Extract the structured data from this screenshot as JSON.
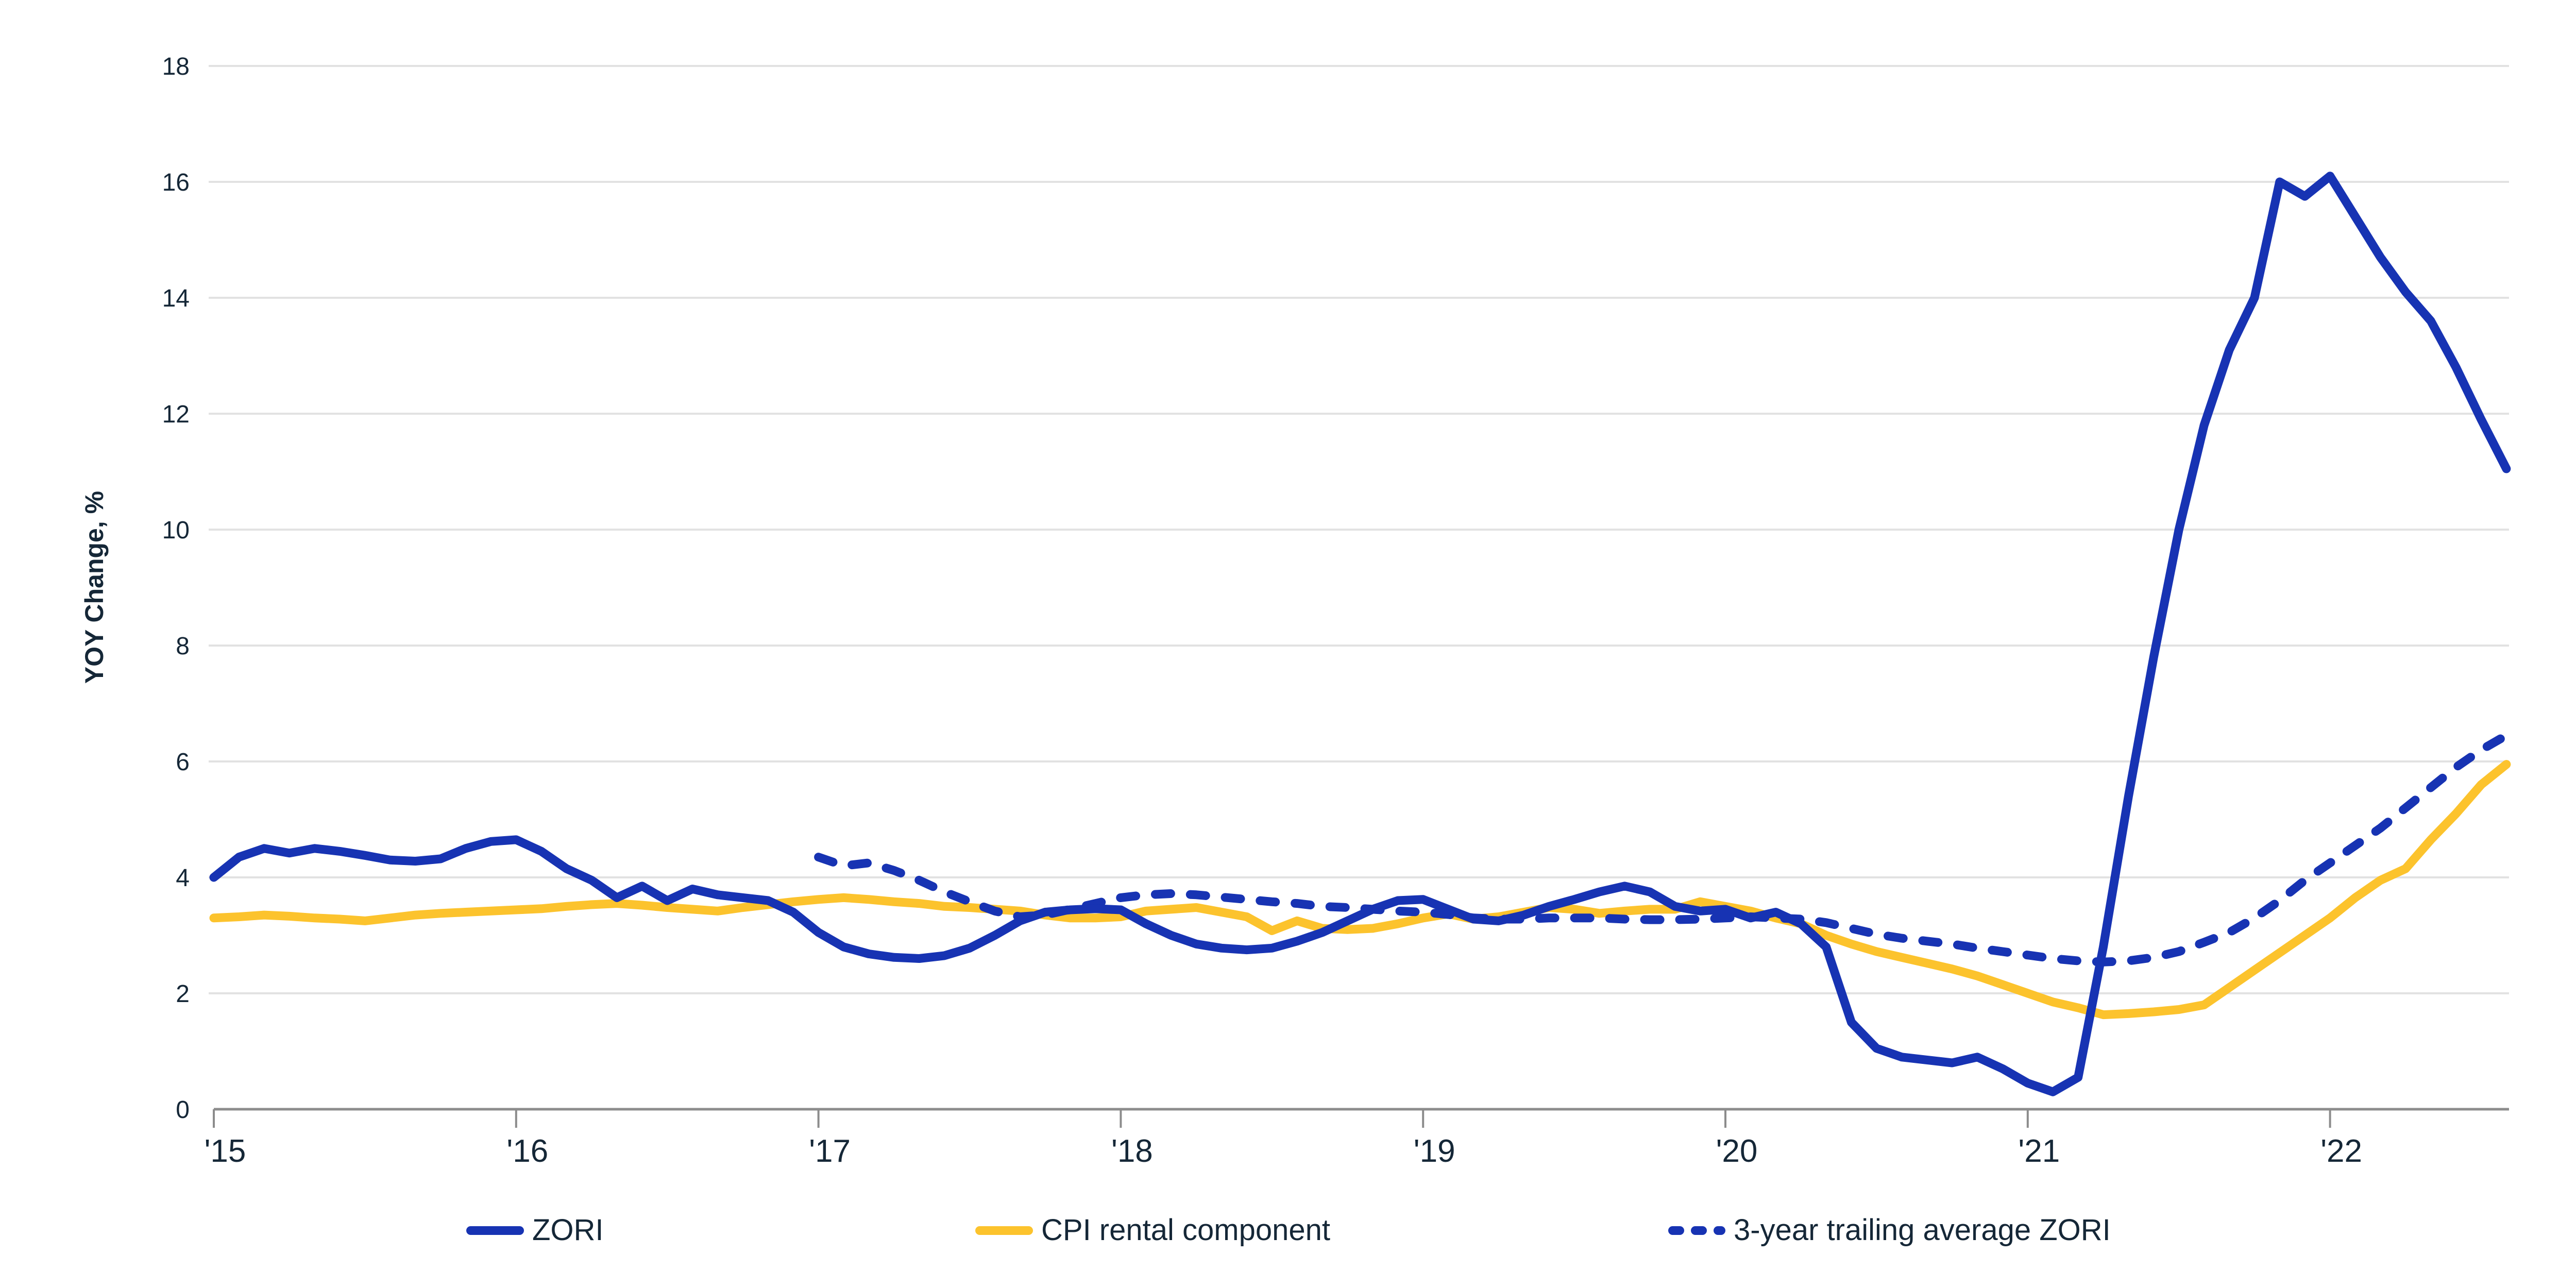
{
  "colors": {
    "zori_blue": "#1733b3",
    "cpi_yellow": "#fcc32d",
    "text_navy": "#152737",
    "gridline_gray": "#e2e2e2",
    "axis_gray": "#8c8c8c",
    "background": "#ffffff"
  },
  "chart_data": {
    "type": "line",
    "ylabel": "YOY Change, %",
    "ylim": [
      0,
      18
    ],
    "yticks": [
      0,
      2,
      4,
      6,
      8,
      10,
      12,
      14,
      16,
      18
    ],
    "xtick_labels": [
      "'15",
      "'16",
      "'17",
      "'18",
      "'19",
      "'20",
      "'21",
      "'22"
    ],
    "grid": "horizontal",
    "legend_position": "bottom",
    "months": [
      "2015-01",
      "2015-02",
      "2015-03",
      "2015-04",
      "2015-05",
      "2015-06",
      "2015-07",
      "2015-08",
      "2015-09",
      "2015-10",
      "2015-11",
      "2015-12",
      "2016-01",
      "2016-02",
      "2016-03",
      "2016-04",
      "2016-05",
      "2016-06",
      "2016-07",
      "2016-08",
      "2016-09",
      "2016-10",
      "2016-11",
      "2016-12",
      "2017-01",
      "2017-02",
      "2017-03",
      "2017-04",
      "2017-05",
      "2017-06",
      "2017-07",
      "2017-08",
      "2017-09",
      "2017-10",
      "2017-11",
      "2017-12",
      "2018-01",
      "2018-02",
      "2018-03",
      "2018-04",
      "2018-05",
      "2018-06",
      "2018-07",
      "2018-08",
      "2018-09",
      "2018-10",
      "2018-11",
      "2018-12",
      "2019-01",
      "2019-02",
      "2019-03",
      "2019-04",
      "2019-05",
      "2019-06",
      "2019-07",
      "2019-08",
      "2019-09",
      "2019-10",
      "2019-11",
      "2019-12",
      "2020-01",
      "2020-02",
      "2020-03",
      "2020-04",
      "2020-05",
      "2020-06",
      "2020-07",
      "2020-08",
      "2020-09",
      "2020-10",
      "2020-11",
      "2020-12",
      "2021-01",
      "2021-02",
      "2021-03",
      "2021-04",
      "2021-05",
      "2021-06",
      "2021-07",
      "2021-08",
      "2021-09",
      "2021-10",
      "2021-11",
      "2021-12",
      "2022-01",
      "2022-02",
      "2022-03",
      "2022-04",
      "2022-05",
      "2022-06",
      "2022-07",
      "2022-08"
    ],
    "series": [
      {
        "name": "ZORI",
        "color": "#1733b3",
        "style": "solid",
        "start_index": 0,
        "values": [
          4.0,
          4.35,
          4.5,
          4.42,
          4.5,
          4.45,
          4.38,
          4.3,
          4.28,
          4.32,
          4.5,
          4.62,
          4.65,
          4.45,
          4.15,
          3.95,
          3.65,
          3.85,
          3.6,
          3.8,
          3.7,
          3.65,
          3.6,
          3.4,
          3.05,
          2.8,
          2.68,
          2.62,
          2.6,
          2.65,
          2.78,
          3.0,
          3.25,
          3.4,
          3.44,
          3.46,
          3.44,
          3.2,
          3.0,
          2.85,
          2.78,
          2.75,
          2.78,
          2.9,
          3.05,
          3.25,
          3.45,
          3.6,
          3.62,
          3.45,
          3.28,
          3.25,
          3.35,
          3.5,
          3.62,
          3.75,
          3.85,
          3.75,
          3.5,
          3.42,
          3.45,
          3.3,
          3.4,
          3.2,
          2.8,
          1.5,
          1.05,
          0.9,
          0.85,
          0.8,
          0.9,
          0.7,
          0.45,
          0.3,
          0.55,
          2.8,
          5.4,
          7.8,
          10.0,
          11.8,
          13.1,
          14.0,
          16.0,
          15.75,
          16.1,
          15.4,
          14.7,
          14.1,
          13.6,
          12.8,
          11.9,
          11.05
        ]
      },
      {
        "name": "CPI rental component",
        "color": "#fcc32d",
        "style": "solid",
        "start_index": 0,
        "values": [
          3.3,
          3.32,
          3.35,
          3.33,
          3.3,
          3.28,
          3.25,
          3.3,
          3.35,
          3.38,
          3.4,
          3.42,
          3.44,
          3.46,
          3.5,
          3.53,
          3.55,
          3.52,
          3.48,
          3.45,
          3.42,
          3.48,
          3.53,
          3.58,
          3.62,
          3.65,
          3.62,
          3.58,
          3.55,
          3.5,
          3.48,
          3.45,
          3.42,
          3.35,
          3.3,
          3.3,
          3.32,
          3.42,
          3.45,
          3.48,
          3.4,
          3.32,
          3.08,
          3.25,
          3.12,
          3.1,
          3.12,
          3.2,
          3.3,
          3.37,
          3.28,
          3.32,
          3.4,
          3.48,
          3.45,
          3.38,
          3.42,
          3.45,
          3.45,
          3.58,
          3.5,
          3.42,
          3.3,
          3.2,
          3.0,
          2.85,
          2.72,
          2.62,
          2.52,
          2.42,
          2.3,
          2.15,
          2.0,
          1.85,
          1.75,
          1.63,
          1.65,
          1.68,
          1.72,
          1.8,
          2.1,
          2.4,
          2.7,
          3.0,
          3.3,
          3.65,
          3.95,
          4.15,
          4.65,
          5.1,
          5.6,
          5.95
        ]
      },
      {
        "name": "3-year trailing average ZORI",
        "color": "#1733b3",
        "style": "dashed",
        "start_index": 24,
        "values": [
          4.35,
          4.2,
          4.25,
          4.12,
          3.95,
          3.75,
          3.58,
          3.42,
          3.32,
          3.35,
          3.45,
          3.55,
          3.65,
          3.7,
          3.72,
          3.7,
          3.66,
          3.62,
          3.58,
          3.55,
          3.5,
          3.48,
          3.45,
          3.42,
          3.4,
          3.36,
          3.3,
          3.28,
          3.28,
          3.3,
          3.3,
          3.3,
          3.28,
          3.27,
          3.27,
          3.28,
          3.3,
          3.32,
          3.3,
          3.28,
          3.22,
          3.12,
          3.02,
          2.95,
          2.9,
          2.85,
          2.78,
          2.72,
          2.66,
          2.6,
          2.56,
          2.54,
          2.56,
          2.62,
          2.72,
          2.88,
          3.05,
          3.3,
          3.6,
          3.95,
          4.25,
          4.55,
          4.85,
          5.2,
          5.55,
          5.9,
          6.2,
          6.45
        ]
      }
    ]
  },
  "legend": {
    "items": [
      {
        "label": "ZORI"
      },
      {
        "label": "CPI rental component"
      },
      {
        "label": "3-year trailing average ZORI"
      }
    ]
  }
}
